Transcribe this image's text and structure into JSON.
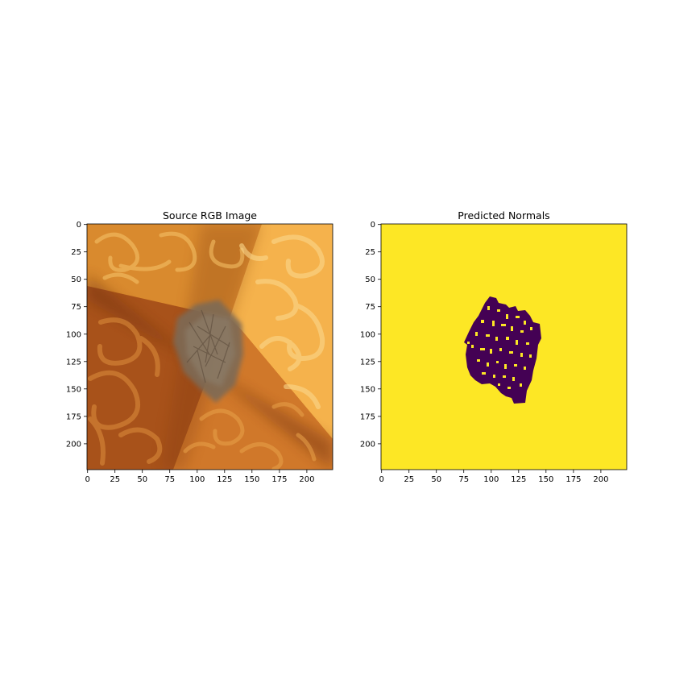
{
  "panels": [
    {
      "title": "Source RGB Image",
      "kind": "rgb-photo",
      "x_ticks": [
        "0",
        "25",
        "50",
        "75",
        "100",
        "125",
        "150",
        "175",
        "200"
      ],
      "y_ticks": [
        "0",
        "25",
        "50",
        "75",
        "100",
        "125",
        "150",
        "175",
        "200"
      ]
    },
    {
      "title": "Predicted Normals",
      "kind": "binary-mask",
      "x_ticks": [
        "0",
        "25",
        "50",
        "75",
        "100",
        "125",
        "150",
        "175",
        "200"
      ],
      "y_ticks": [
        "0",
        "25",
        "50",
        "75",
        "100",
        "125",
        "150",
        "175",
        "200"
      ]
    }
  ],
  "colors": {
    "mask_background": "#fde725",
    "mask_foreground": "#440154",
    "texture_light": "#f8c060",
    "texture_mid": "#e0922c",
    "texture_dark": "#8a3c10",
    "blob": "#7d6a55"
  }
}
